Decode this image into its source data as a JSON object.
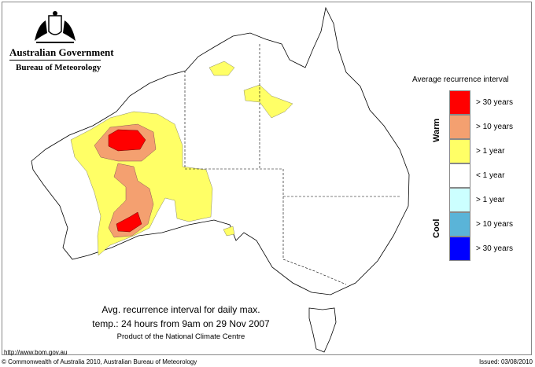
{
  "header": {
    "logo_line1": "Australian Government",
    "logo_line2": "Bureau of Meteorology",
    "crest_icon": "commonwealth-coat-of-arms"
  },
  "legend": {
    "title": "Average recurrence interval",
    "warm_label": "Warm",
    "cool_label": "Cool",
    "items": [
      {
        "label": "> 30 years",
        "color": "#ff0000"
      },
      {
        "label": "> 10 years",
        "color": "#f4a070"
      },
      {
        "label": "> 1 year",
        "color": "#ffff66"
      },
      {
        "label": "< 1 year",
        "color": "#ffffff"
      },
      {
        "label": "> 1 year",
        "color": "#ccffff"
      },
      {
        "label": "> 10 years",
        "color": "#5ab4d8"
      },
      {
        "label": "> 30 years",
        "color": "#0000ff"
      }
    ]
  },
  "caption": {
    "line1": "Avg. recurrence interval for daily max.",
    "line2": "temp.: 24 hours from 9am on 29 Nov 2007",
    "line3": "Product of the National Climate Centre"
  },
  "footer": {
    "url": "http://www.bom.gov.au",
    "copyright": "© Commonwealth of Australia 2010, Australian Bureau of Meteorology",
    "issued": "Issued: 03/08/2010"
  }
}
